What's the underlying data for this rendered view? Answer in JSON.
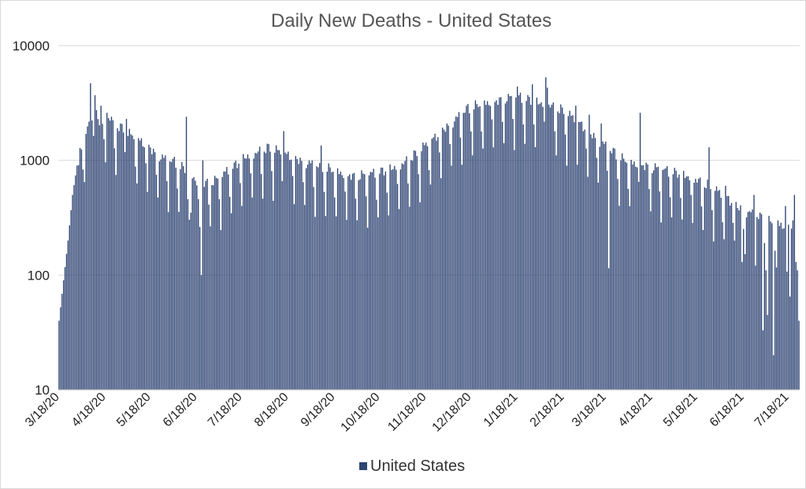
{
  "chart_data": {
    "type": "bar",
    "title": "Daily New Deaths - United States",
    "xlabel": "",
    "ylabel": "",
    "yscale": "log",
    "ylim": [
      10,
      10000
    ],
    "y_ticks": [
      10,
      100,
      1000,
      10000
    ],
    "y_tick_labels": [
      "10",
      "100",
      "1000",
      "10000"
    ],
    "grid": true,
    "legend": {
      "position": "bottom",
      "entries": [
        "United States"
      ]
    },
    "start_date": "3/18/20",
    "num_days": 495,
    "x_tick_labels": [
      "3/18/20",
      "4/18/20",
      "5/18/20",
      "6/18/20",
      "7/18/20",
      "8/18/20",
      "9/18/20",
      "10/18/20",
      "11/18/20",
      "12/18/20",
      "1/18/21",
      "2/18/21",
      "3/18/21",
      "4/18/21",
      "5/18/21",
      "6/18/21",
      "7/18/21"
    ],
    "x_tick_day_index": [
      0,
      31,
      61,
      92,
      122,
      153,
      184,
      214,
      245,
      275,
      306,
      337,
      365,
      396,
      426,
      457,
      487
    ],
    "series": [
      {
        "name": "United States",
        "color": "#2e4473",
        "anchors": [
          [
            0,
            40
          ],
          [
            3,
            90
          ],
          [
            6,
            200
          ],
          [
            9,
            500
          ],
          [
            12,
            900
          ],
          [
            15,
            1300
          ],
          [
            18,
            1700
          ],
          [
            21,
            2100
          ],
          [
            24,
            2700
          ],
          [
            27,
            2100
          ],
          [
            30,
            2200
          ],
          [
            33,
            2300
          ],
          [
            36,
            2000
          ],
          [
            40,
            1900
          ],
          [
            44,
            1800
          ],
          [
            48,
            1600
          ],
          [
            52,
            1500
          ],
          [
            56,
            1400
          ],
          [
            60,
            1300
          ],
          [
            64,
            1150
          ],
          [
            68,
            1050
          ],
          [
            72,
            1000
          ],
          [
            76,
            950
          ],
          [
            80,
            900
          ],
          [
            84,
            800
          ],
          [
            88,
            720
          ],
          [
            92,
            650
          ],
          [
            96,
            620
          ],
          [
            100,
            640
          ],
          [
            104,
            650
          ],
          [
            108,
            700
          ],
          [
            112,
            780
          ],
          [
            116,
            850
          ],
          [
            120,
            950
          ],
          [
            124,
            1050
          ],
          [
            128,
            1100
          ],
          [
            132,
            1150
          ],
          [
            136,
            1200
          ],
          [
            140,
            1250
          ],
          [
            144,
            1200
          ],
          [
            148,
            1150
          ],
          [
            152,
            1100
          ],
          [
            156,
            1050
          ],
          [
            160,
            1000
          ],
          [
            164,
            950
          ],
          [
            168,
            920
          ],
          [
            172,
            880
          ],
          [
            176,
            850
          ],
          [
            180,
            820
          ],
          [
            184,
            790
          ],
          [
            188,
            760
          ],
          [
            192,
            740
          ],
          [
            196,
            720
          ],
          [
            200,
            720
          ],
          [
            204,
            730
          ],
          [
            208,
            740
          ],
          [
            212,
            760
          ],
          [
            216,
            790
          ],
          [
            220,
            820
          ],
          [
            224,
            860
          ],
          [
            228,
            900
          ],
          [
            232,
            970
          ],
          [
            236,
            1050
          ],
          [
            240,
            1150
          ],
          [
            244,
            1300
          ],
          [
            248,
            1450
          ],
          [
            252,
            1600
          ],
          [
            256,
            1800
          ],
          [
            260,
            2000
          ],
          [
            264,
            2200
          ],
          [
            268,
            2450
          ],
          [
            272,
            2700
          ],
          [
            276,
            2850
          ],
          [
            280,
            2950
          ],
          [
            284,
            3050
          ],
          [
            288,
            3150
          ],
          [
            292,
            3250
          ],
          [
            296,
            3350
          ],
          [
            300,
            3450
          ],
          [
            304,
            3500
          ],
          [
            308,
            3450
          ],
          [
            312,
            3350
          ],
          [
            316,
            3250
          ],
          [
            320,
            3150
          ],
          [
            324,
            3050
          ],
          [
            328,
            2950
          ],
          [
            332,
            2800
          ],
          [
            336,
            2650
          ],
          [
            340,
            2450
          ],
          [
            344,
            2250
          ],
          [
            348,
            2050
          ],
          [
            352,
            1850
          ],
          [
            356,
            1650
          ],
          [
            360,
            1500
          ],
          [
            364,
            1350
          ],
          [
            368,
            1200
          ],
          [
            372,
            1100
          ],
          [
            376,
            1000
          ],
          [
            380,
            950
          ],
          [
            384,
            920
          ],
          [
            388,
            900
          ],
          [
            392,
            880
          ],
          [
            396,
            850
          ],
          [
            400,
            830
          ],
          [
            404,
            800
          ],
          [
            408,
            780
          ],
          [
            412,
            760
          ],
          [
            416,
            740
          ],
          [
            420,
            710
          ],
          [
            424,
            680
          ],
          [
            428,
            640
          ],
          [
            432,
            600
          ],
          [
            436,
            560
          ],
          [
            440,
            520
          ],
          [
            444,
            480
          ],
          [
            448,
            440
          ],
          [
            452,
            400
          ],
          [
            456,
            370
          ],
          [
            460,
            350
          ],
          [
            464,
            330
          ],
          [
            468,
            310
          ],
          [
            472,
            290
          ],
          [
            476,
            280
          ],
          [
            480,
            270
          ],
          [
            484,
            265
          ],
          [
            488,
            270
          ],
          [
            492,
            280
          ],
          [
            494,
            285
          ]
        ],
        "weekly_factors": [
          1.0,
          1.03,
          1.05,
          1.04,
          1.0,
          0.65,
          0.4
        ],
        "weekday_offset": 3,
        "overrides": [
          [
            12,
            900
          ],
          [
            13,
            910
          ],
          [
            21,
            4700
          ],
          [
            24,
            3700
          ],
          [
            28,
            3000
          ],
          [
            32,
            2600
          ],
          [
            35,
            2400
          ],
          [
            45,
            2300
          ],
          [
            85,
            2400
          ],
          [
            88,
            350
          ],
          [
            95,
            100
          ],
          [
            96,
            1000
          ],
          [
            150,
            1800
          ],
          [
            175,
            1350
          ],
          [
            300,
            3800
          ],
          [
            306,
            4400
          ],
          [
            316,
            4600
          ],
          [
            325,
            5300
          ],
          [
            326,
            4300
          ],
          [
            345,
            3000
          ],
          [
            354,
            2500
          ],
          [
            362,
            2100
          ],
          [
            367,
            115
          ],
          [
            388,
            2600
          ],
          [
            434,
            1300
          ],
          [
            445,
            600
          ],
          [
            451,
            200
          ],
          [
            456,
            130
          ],
          [
            464,
            500
          ],
          [
            470,
            33
          ],
          [
            473,
            45
          ],
          [
            477,
            20
          ],
          [
            480,
            300
          ],
          [
            485,
            400
          ],
          [
            488,
            65
          ],
          [
            491,
            500
          ],
          [
            492,
            130
          ],
          [
            493,
            110
          ],
          [
            494,
            40
          ]
        ]
      }
    ]
  }
}
